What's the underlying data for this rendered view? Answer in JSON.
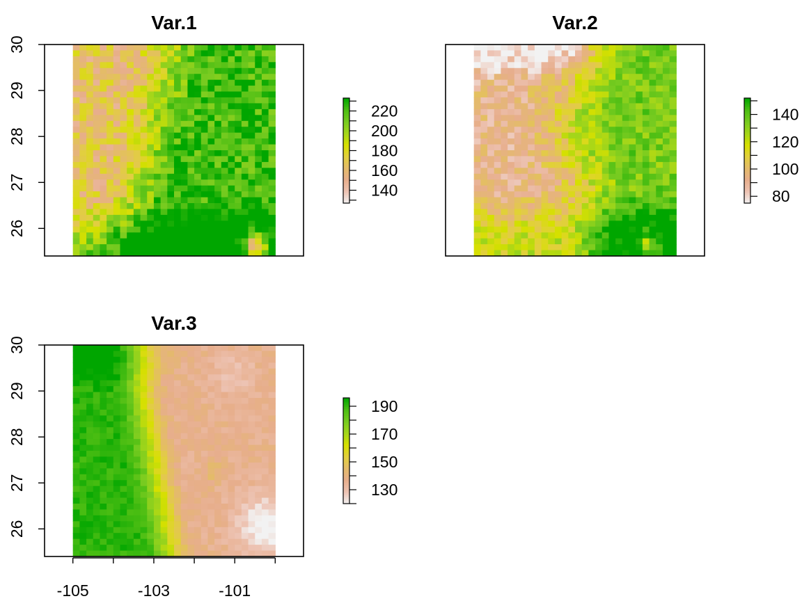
{
  "colors": {
    "ramp": [
      "#F2F2F2",
      "#EDC3B3",
      "#E7AE8C",
      "#E4BB6A",
      "#E2CF3E",
      "#D6E000",
      "#A4D61A",
      "#77CB20",
      "#4CBE13",
      "#00A600"
    ],
    "frame": "#000000",
    "background": "#FFFFFF"
  },
  "chart_data": [
    {
      "type": "heatmap",
      "title": "Var.1",
      "grid_size": [
        30,
        36
      ],
      "x_range": [
        -105.0,
        -100.0
      ],
      "y_range": [
        25.4,
        30.0
      ],
      "xlim": [
        -105.7,
        -99.3
      ],
      "ylim": [
        25.4,
        30.0
      ],
      "yticks": [
        26,
        27,
        28,
        29,
        30
      ],
      "xticks": [],
      "show_x_axis": false,
      "value_range": [
        127,
        233
      ],
      "legend_ticks": [
        140,
        160,
        180,
        200,
        220
      ],
      "legend_position": "right",
      "pattern": "green (~220) along the east half and south edge, yellow-orange (~160-180) west-center, pale spot (~127) at the south-east corner"
    },
    {
      "type": "heatmap",
      "title": "Var.2",
      "grid_size": [
        30,
        36
      ],
      "x_range": [
        -105.0,
        -100.0
      ],
      "y_range": [
        25.4,
        30.0
      ],
      "xlim": [
        -105.7,
        -99.3
      ],
      "ylim": [
        25.4,
        30.0
      ],
      "yticks": [],
      "xticks": [],
      "show_x_axis": false,
      "value_range": [
        75,
        152
      ],
      "legend_ticks": [
        80,
        100,
        120,
        140
      ],
      "legend_position": "right",
      "pattern": "salmon (~90-100) west and north, yellow (~120) central band, green (~140) east and south"
    },
    {
      "type": "heatmap",
      "title": "Var.3",
      "grid_size": [
        30,
        36
      ],
      "x_range": [
        -105.0,
        -100.0
      ],
      "y_range": [
        25.4,
        30.0
      ],
      "xlim": [
        -105.7,
        -99.3
      ],
      "ylim": [
        25.4,
        30.0
      ],
      "yticks": [
        26,
        27,
        28,
        29,
        30
      ],
      "xticks": [
        -105,
        -104,
        -103,
        -102,
        -101,
        -100
      ],
      "xtick_labels": [
        "-105",
        "",
        "-103",
        "",
        "-101",
        ""
      ],
      "show_x_axis": true,
      "value_range": [
        120,
        196
      ],
      "legend_ticks": [
        130,
        150,
        170,
        190
      ],
      "legend_position": "right",
      "pattern": "green (~190) along the west / south-west edge, yellow transition, salmon (~135) across the center and east, near-white (~120) toward the south-east"
    }
  ]
}
